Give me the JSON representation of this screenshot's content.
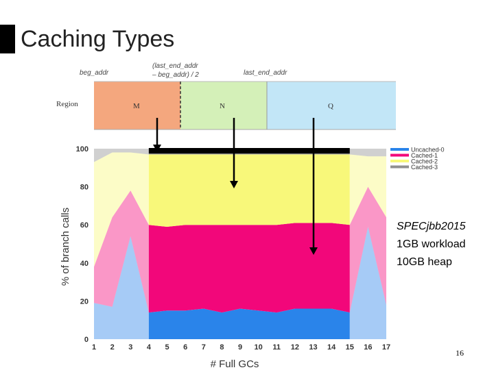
{
  "slide": {
    "title": "Caching Types",
    "note_line1": "SPECjbb2015",
    "note_line2": "1GB workload",
    "note_line3": "10GB heap",
    "page_number": "16"
  },
  "region_diagram": {
    "row_label": "Region",
    "top_labels": [
      "beg_addr",
      "(last_end_addr",
      "– beg_addr) / 2",
      "last_end_addr"
    ],
    "regions": [
      {
        "name": "M",
        "color": "#f4a77e"
      },
      {
        "name": "N",
        "color": "#d4f0b8"
      },
      {
        "name": "Q",
        "color": "#c2e6f7"
      }
    ]
  },
  "colors": {
    "uncached0": "#2a84ea",
    "cached1": "#f2077a",
    "cached2": "#f8f87a",
    "cached3": "#909090",
    "arrow": "#000000"
  },
  "chart_data": {
    "type": "area",
    "title": "",
    "xlabel": "# Full GCs",
    "ylabel": "% of branch calls",
    "ylim": [
      0,
      100
    ],
    "x": [
      1,
      2,
      3,
      4,
      5,
      6,
      7,
      8,
      9,
      10,
      11,
      12,
      13,
      14,
      15,
      16,
      17
    ],
    "yticks": [
      0,
      20,
      40,
      60,
      80,
      100
    ],
    "legend_position": "top-right",
    "highlight_range": [
      4,
      15
    ],
    "series": [
      {
        "name": "Uncached-0",
        "values": [
          19,
          17,
          54,
          14,
          15,
          15,
          16,
          14,
          16,
          15,
          14,
          16,
          16,
          16,
          14,
          59,
          18
        ]
      },
      {
        "name": "Cached-1",
        "values": [
          19,
          47,
          24,
          46,
          44,
          45,
          44,
          46,
          44,
          45,
          46,
          45,
          45,
          45,
          46,
          21,
          46
        ]
      },
      {
        "name": "Cached-2",
        "values": [
          55,
          34,
          20,
          37,
          38,
          37,
          37,
          37,
          37,
          37,
          37,
          36,
          36,
          36,
          37,
          16,
          32
        ]
      },
      {
        "name": "Cached-3",
        "values": [
          7,
          2,
          2,
          3,
          3,
          3,
          3,
          3,
          3,
          3,
          3,
          3,
          3,
          3,
          3,
          4,
          4
        ]
      }
    ]
  }
}
